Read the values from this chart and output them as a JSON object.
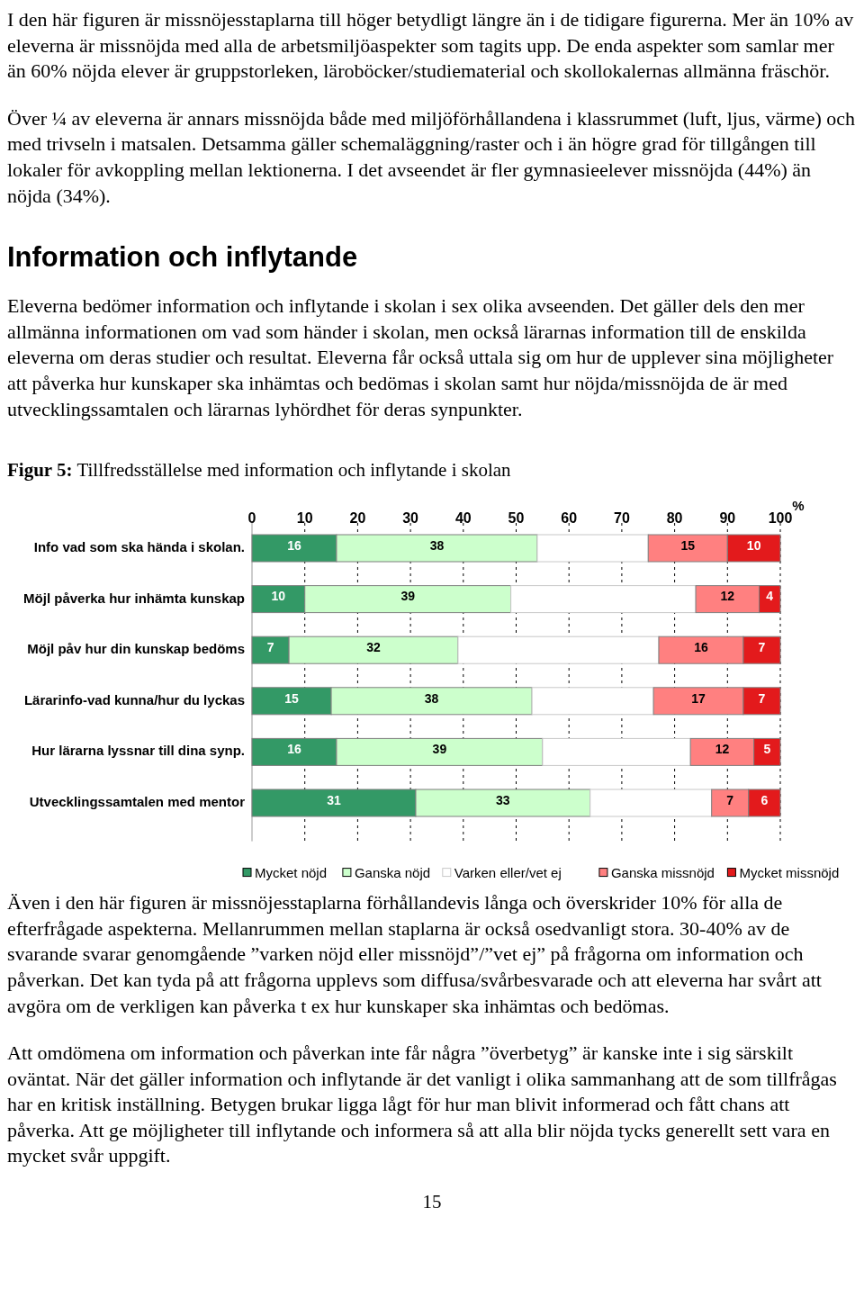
{
  "chart_data": {
    "type": "bar",
    "orientation": "horizontal",
    "stacked": true,
    "title": "Figur 5: Tillfredsställelse med information och inflytande i skolan",
    "xlabel": "%",
    "categories": [
      "Info vad som ska hända i skolan.",
      "Möjl påverka hur inhämta kunskap",
      "Möjl påv hur din kunskap bedöms",
      "Lärarinfo-vad kunna/hur du lyckas",
      "Hur lärarna lyssnar till dina synp.",
      "Utvecklingssamtalen med mentor"
    ],
    "series": [
      {
        "name": "Mycket nöjd",
        "color": "#339966",
        "values": [
          16,
          10,
          7,
          15,
          16,
          31
        ],
        "value_labels": [
          "16",
          "10",
          "7",
          "15",
          "16",
          "31"
        ]
      },
      {
        "name": "Ganska nöjd",
        "color": "#ccffcc",
        "values": [
          38,
          39,
          32,
          38,
          39,
          33
        ],
        "value_labels": [
          "38",
          "39",
          "32",
          "38",
          "39",
          "33"
        ]
      },
      {
        "name": "Varken eller/vet ej",
        "color": "#ffffff",
        "values": [
          21,
          35,
          38,
          23,
          28,
          23
        ],
        "value_labels": [
          null,
          null,
          null,
          null,
          null,
          null
        ]
      },
      {
        "name": "Ganska missnöjd",
        "color": "#ff8080",
        "values": [
          15,
          12,
          16,
          17,
          12,
          7
        ],
        "value_labels": [
          "15",
          "12",
          "16",
          "17",
          "12",
          "7"
        ]
      },
      {
        "name": "Mycket missnöjd",
        "color": "#e31a1c",
        "values": [
          10,
          4,
          7,
          7,
          5,
          6
        ],
        "value_labels": [
          "10",
          "4",
          "7",
          "7",
          "5",
          "6"
        ]
      }
    ],
    "xlim": [
      0,
      100
    ],
    "xticks": [
      0,
      10,
      20,
      30,
      40,
      50,
      60,
      70,
      80,
      90,
      100
    ],
    "grid": "x",
    "legend": "bottom",
    "annotations": [
      "I den här figuren är missnöjesstaplarna till höger betydligt längre än i de tidigare figurerna. Mer än 10% av eleverna är missnöjda med alla de arbetsmiljöaspekter som tagits upp. De enda aspekter som samlar mer än 60% nöjda elever är gruppstorleken, läroböcker/studiematerial och skollokalernas allmänna fräschör.",
      "Över ¼ av eleverna är annars missnöjda både med miljöförhållandena i klassrummet (luft, ljus, värme) och med trivseln i matsalen. Detsamma gäller schemaläggning/raster och i än högre grad för tillgången till lokaler för avkoppling mellan lektionerna. I det avseendet är fler gymnasieelever missnöjda (44%) än nöjda (34%).",
      "Information och inflytande",
      "Eleverna bedömer information och inflytande i skolan i sex olika avseenden. Det gäller dels den mer allmänna informationen om vad som händer i skolan, men också lärarnas information till de enskilda eleverna om deras studier och resultat. Eleverna får också uttala sig om hur de upplever sina möjligheter att påverka hur kunskaper ska inhämtas och bedömas i skolan samt hur nöjda/missnöjda de är med utvecklingssamtalen och lärarnas lyhördhet för deras synpunkter.",
      "Även i den här figuren är missnöjesstaplarna förhållandevis långa och överskrider 10% för alla de efterfrågade aspekterna. Mellanrummen mellan staplarna är också osedvanligt stora. 30-40% av de svarande svarar genomgående ”varken nöjd eller missnöjd”/”vet ej” på frågorna om information och påverkan. Det kan tyda på att frågorna upplevs som diffusa/svårbesvarade och att eleverna har svårt att avgöra om de verkligen kan påverka t ex hur kunskaper ska inhämtas och bedömas.",
      "Att omdömena om information och påverkan inte får några ”överbetyg” är kanske inte i sig särskilt oväntat. När det gäller information och inflytande är det vanligt i olika sammanhang att de som tillfrågas har en kritisk inställning. Betygen brukar ligga lågt för hur man blivit informerad och fått chans att påverka. Att ge möjligheter till inflytande och informera så att alla blir nöjda tycks generellt sett vara en mycket svår uppgift.",
      "15"
    ]
  }
}
